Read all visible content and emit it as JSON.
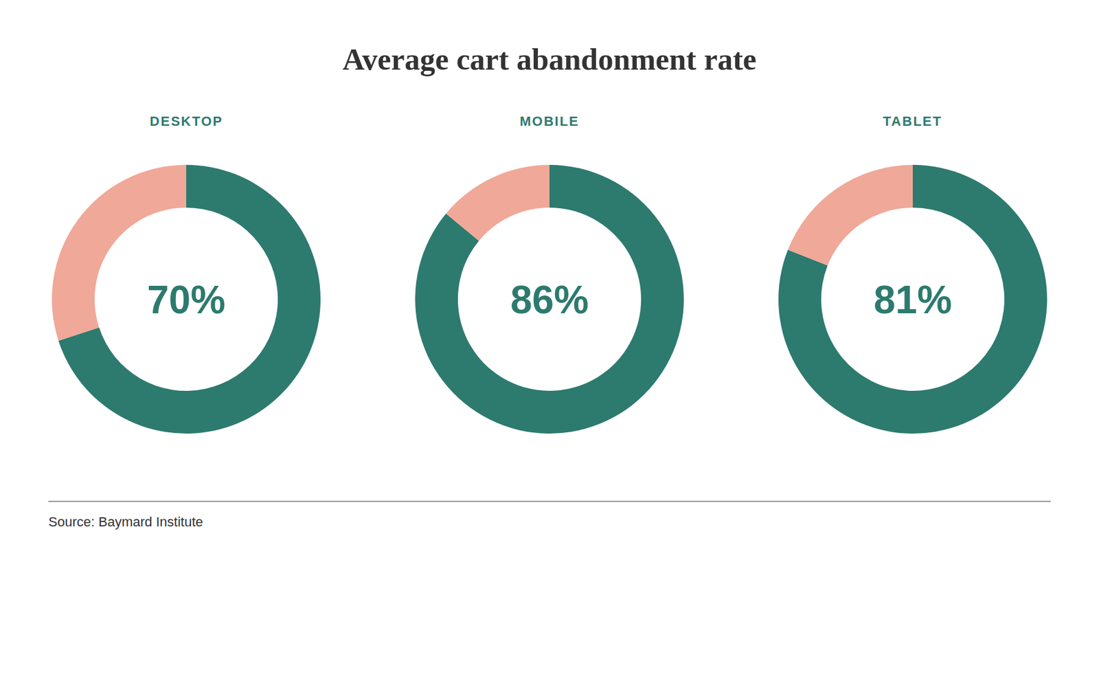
{
  "title": "Average cart abandonment rate",
  "annotations": [
    "Source: Baymard Institute"
  ],
  "chart_data": [
    {
      "type": "pie",
      "title": "DESKTOP",
      "values": [
        70,
        30
      ],
      "colors": [
        "#2d7a6e",
        "#f0a898"
      ],
      "value_labels": [
        "70%",
        null
      ],
      "data_labels": true
    },
    {
      "type": "pie",
      "title": "MOBILE",
      "values": [
        86,
        14
      ],
      "colors": [
        "#2d7a6e",
        "#f0a898"
      ],
      "value_labels": [
        "86%",
        null
      ],
      "data_labels": true
    },
    {
      "type": "pie",
      "title": "TABLET",
      "values": [
        81,
        19
      ],
      "colors": [
        "#2d7a6e",
        "#f0a898"
      ],
      "value_labels": [
        "81%",
        null
      ],
      "data_labels": true
    }
  ]
}
